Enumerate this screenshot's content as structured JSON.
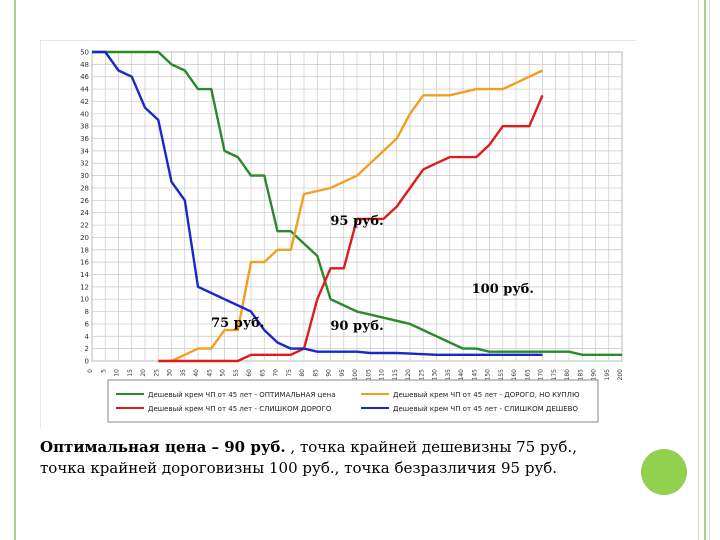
{
  "colors": {
    "optimal": "#2a8a2a",
    "expensive_buy": "#f0a020",
    "too_expensive": "#dd1c1c",
    "too_cheap": "#1a28c8",
    "slide_accent": "#92d050"
  },
  "caption": {
    "bold": "Оптимальная цена – 90 руб.",
    "rest_line1": " , точка крайней дешевизны 75 руб.,",
    "line2": "точка крайней дороговизны 100 руб., точка безразличия 95 руб."
  },
  "chart_data": {
    "type": "line",
    "title": "",
    "ylabel": "",
    "ylim": [
      0,
      50
    ],
    "ytick_step": 2,
    "x": [
      0,
      5,
      10,
      15,
      20,
      25,
      30,
      35,
      40,
      45,
      50,
      55,
      60,
      65,
      70,
      75,
      80,
      85,
      90,
      95,
      100,
      105,
      110,
      115,
      120,
      125,
      130,
      135,
      140,
      145,
      150,
      155,
      160,
      165,
      170,
      175,
      180,
      185,
      190,
      195,
      200
    ],
    "series": [
      {
        "key": "optimal",
        "name": "Дешевый крем ЧП от 45 лет - ОПТИМАЛЬНАЯ цена",
        "values": [
          50,
          50,
          50,
          50,
          50,
          50,
          48,
          47,
          44,
          44,
          34,
          33,
          30,
          30,
          21,
          21,
          19,
          17,
          10,
          9,
          8,
          7.5,
          7,
          6.5,
          6,
          5,
          4,
          3,
          2,
          2,
          1.5,
          1.5,
          1.5,
          1.5,
          1.5,
          1.5,
          1.5,
          1,
          1,
          1,
          1
        ]
      },
      {
        "key": "expensive_buy",
        "name": "Дешевый крем ЧП от 45 лет - ДОРОГО, НО КУПЛЮ",
        "values": [
          null,
          null,
          null,
          null,
          null,
          0,
          0,
          1,
          2,
          2,
          5,
          5,
          16,
          16,
          18,
          18,
          27,
          27.5,
          28,
          29,
          30,
          32,
          34,
          36,
          40,
          43,
          43,
          43,
          43.5,
          44,
          44,
          44,
          45,
          46,
          47,
          null,
          null,
          null,
          null,
          null,
          null
        ]
      },
      {
        "key": "too_expensive",
        "name": "Дешевый крем ЧП от 45 лет - СЛИШКОМ ДОРОГО",
        "values": [
          null,
          null,
          null,
          null,
          null,
          0,
          0,
          0,
          0,
          0,
          0,
          0,
          1,
          1,
          1,
          1,
          2,
          10,
          15,
          15,
          23,
          23,
          23,
          25,
          28,
          31,
          32,
          33,
          33,
          33,
          35,
          38,
          38,
          38,
          43,
          null,
          null,
          null,
          null,
          null,
          null
        ]
      },
      {
        "key": "too_cheap",
        "name": "Дешевый крем ЧП от 45 лет - СЛИШКОМ ДЕШЕВО",
        "values": [
          50,
          50,
          47,
          46,
          41,
          39,
          29,
          26,
          12,
          11,
          10,
          9,
          8,
          5,
          3,
          2,
          2,
          1.5,
          1.5,
          1.5,
          1.5,
          1.3,
          1.3,
          1.3,
          1.2,
          1.1,
          1,
          1,
          1,
          1,
          1,
          1,
          1,
          1,
          1,
          null,
          null,
          null,
          null,
          null,
          null
        ]
      }
    ],
    "annotations": [
      {
        "text": "95 руб.",
        "x": 100,
        "y": 22
      },
      {
        "text": "100 руб.",
        "x": 155,
        "y": 11
      },
      {
        "text": "75 руб.",
        "x": 55,
        "y": 5.5
      },
      {
        "text": "90 руб.",
        "x": 100,
        "y": 5
      }
    ],
    "grid": true,
    "legend": "bottom"
  }
}
